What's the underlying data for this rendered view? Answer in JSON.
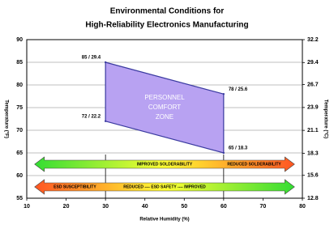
{
  "chart_data": {
    "type": "zone",
    "title": [
      "Environmental Conditions for",
      "High-Reliability Electronics Manufacturing"
    ],
    "xlabel": "Relative Humidity (%)",
    "ylabel": "Temperature (°F)",
    "y2label": "Temperature (°C)",
    "xlim": [
      10,
      80
    ],
    "xticks": [
      10,
      20,
      30,
      40,
      50,
      60,
      70,
      80
    ],
    "ylim": [
      55,
      90
    ],
    "yticks": [
      55,
      60,
      65,
      70,
      75,
      80,
      85,
      90
    ],
    "y2lim": [
      12.8,
      32.2
    ],
    "y2ticks": [
      12.8,
      15.6,
      18.3,
      21.1,
      23.9,
      26.7,
      29.4,
      32.2
    ],
    "grid": true,
    "zone_bounds_x": [
      30,
      60
    ],
    "zone": {
      "label": [
        "PERSONNEL",
        "COMFORT",
        "ZONE"
      ],
      "color": "#b8a2f2",
      "edge": "#3a3aa0",
      "points": [
        {
          "x": 30,
          "y": 85,
          "label": "85 / 29.4"
        },
        {
          "x": 60,
          "y": 78,
          "label": "78 / 25.6"
        },
        {
          "x": 60,
          "y": 65,
          "label": "65 / 18.3"
        },
        {
          "x": 30,
          "y": 72,
          "label": "72 / 22.2"
        }
      ]
    },
    "arrows": [
      {
        "level": 62.5,
        "range": [
          12,
          78
        ],
        "colors": [
          "#33dd33",
          "#ffff33",
          "#ff5522"
        ],
        "labels": [
          "IMPROVED SOLDERABILITY",
          "REDUCED SOLDERABILITY"
        ]
      },
      {
        "level": 57.5,
        "range": [
          12,
          78
        ],
        "colors": [
          "#ff5522",
          "#ffff33",
          "#33dd33"
        ],
        "labels": [
          "ESD SUSCEPTIBILITY",
          "REDUCED ---- ESD SAFETY ---- IMPROVED"
        ]
      }
    ]
  }
}
